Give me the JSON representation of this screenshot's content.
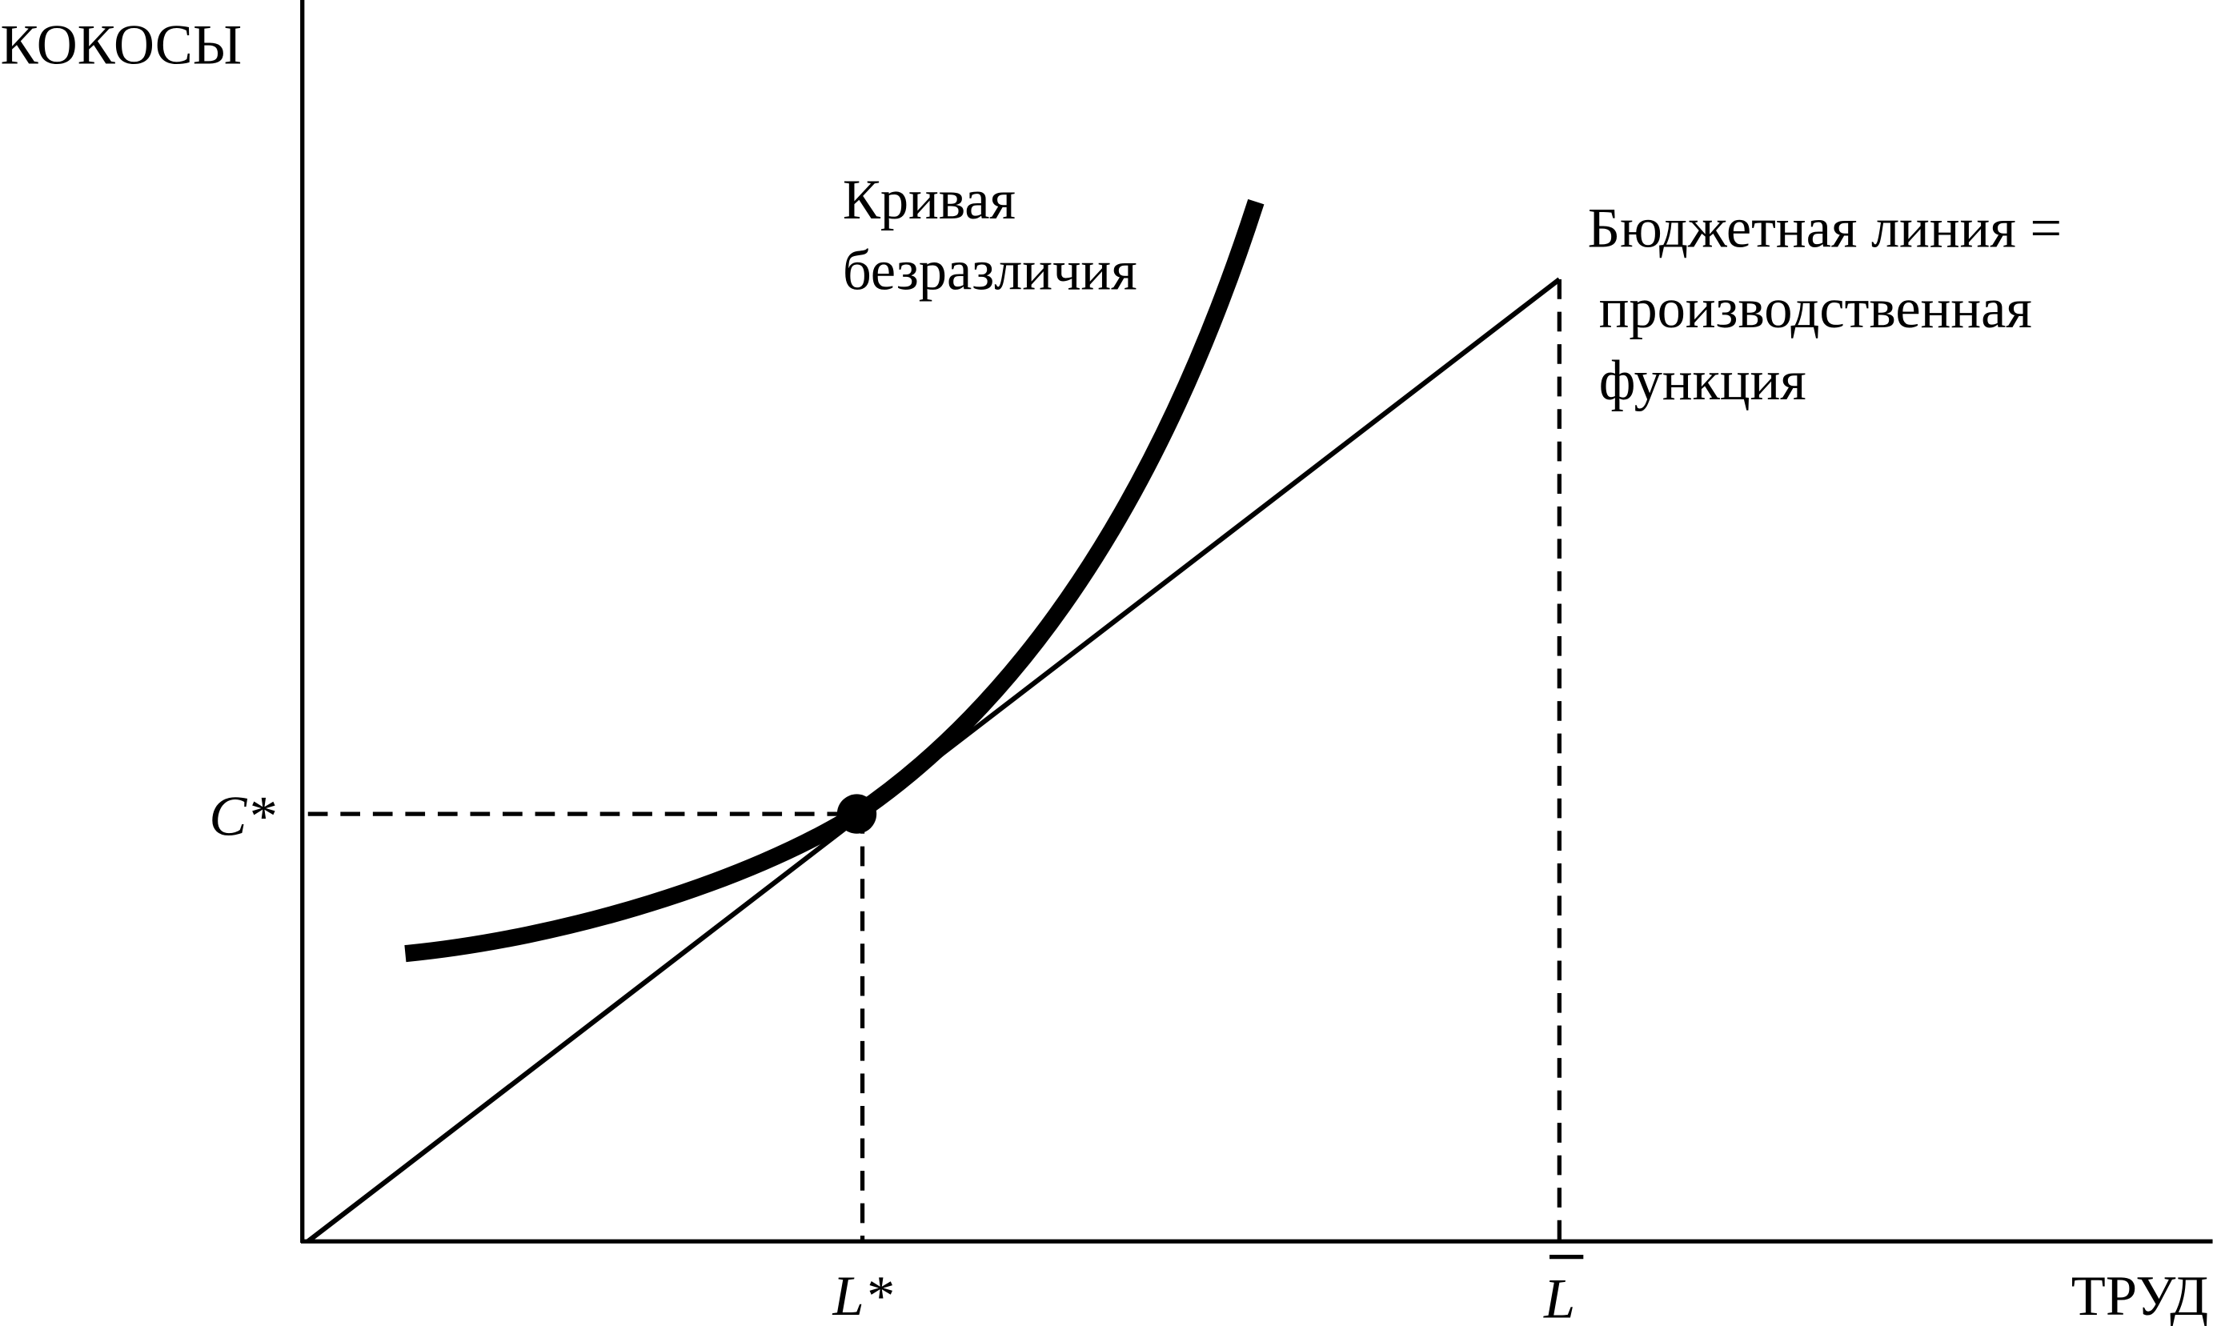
{
  "axes": {
    "y_label": "КОКОСЫ",
    "x_label": "ТРУД"
  },
  "labels": {
    "indifference_curve": [
      "Кривая",
      "безразличия"
    ],
    "budget_line": [
      "Бюджетная линия =",
      "производственная",
      "функция"
    ]
  },
  "ticks": {
    "c_star": "C*",
    "l_star": "L*",
    "l_bar": "L"
  }
}
